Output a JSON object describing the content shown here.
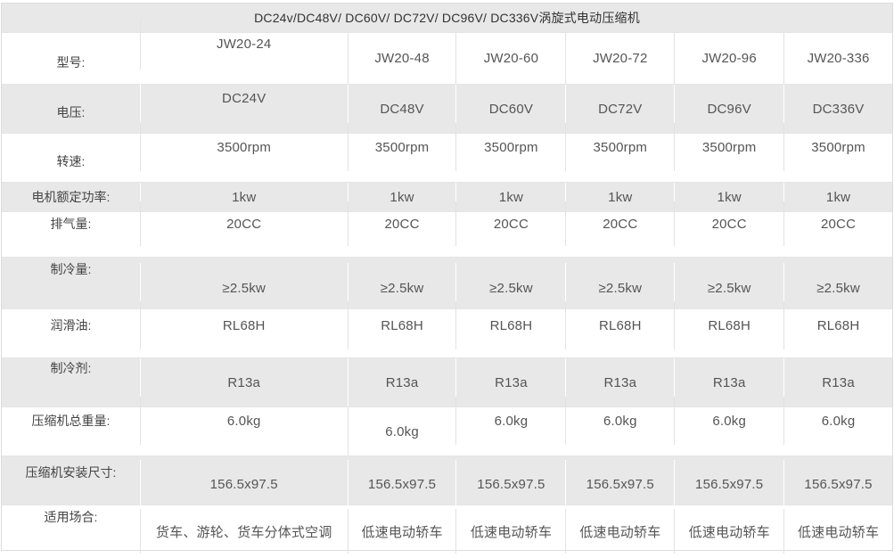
{
  "table": {
    "title": "DC24v/DC48V/ DC60V/ DC72V/ DC96V/ DC336V涡旋式电动压缩机",
    "columns": [
      "JW20-24",
      "JW20-48",
      "JW20-60",
      "JW20-72",
      "JW20-96",
      "JW20-336"
    ],
    "rows": [
      {
        "label": "型号:",
        "values": [
          "JW20-24",
          "JW20-48",
          "JW20-60",
          "JW20-72",
          "JW20-96",
          "JW20-336"
        ]
      },
      {
        "label": "电压:",
        "values": [
          "DC24V",
          "DC48V",
          "DC60V",
          "DC72V",
          "DC96V",
          "DC336V"
        ]
      },
      {
        "label": "转速:",
        "values": [
          "3500rpm",
          "3500rpm",
          "3500rpm",
          "3500rpm",
          "3500rpm",
          "3500rpm"
        ]
      },
      {
        "label": "电机额定功率:",
        "values": [
          "1kw",
          "1kw",
          "1kw",
          "1kw",
          "1kw",
          "1kw"
        ]
      },
      {
        "label": "排气量:",
        "values": [
          "20CC",
          "20CC",
          "20CC",
          "20CC",
          "20CC",
          "20CC"
        ]
      },
      {
        "label": "制冷量:",
        "values": [
          "≥2.5kw",
          "≥2.5kw",
          "≥2.5kw",
          "≥2.5kw",
          "≥2.5kw",
          "≥2.5kw"
        ]
      },
      {
        "label": "润滑油:",
        "values": [
          "RL68H",
          "RL68H",
          "RL68H",
          "RL68H",
          "RL68H",
          "RL68H"
        ]
      },
      {
        "label": "制冷剂:",
        "values": [
          "R13a",
          "R13a",
          "R13a",
          "R13a",
          "R13a",
          "R13a"
        ]
      },
      {
        "label": "压缩机总重量:",
        "values": [
          "6.0kg",
          "6.0kg",
          "6.0kg",
          "6.0kg",
          "6.0kg",
          "6.0kg"
        ]
      },
      {
        "label": "压缩机安装尺寸:",
        "values": [
          "156.5x97.5",
          "156.5x97.5",
          "156.5x97.5",
          "156.5x97.5",
          "156.5x97.5",
          "156.5x97.5"
        ]
      },
      {
        "label": "适用场合:",
        "values": [
          "货车、游轮、货车分体式空调",
          "低速电动轿车",
          "低速电动轿车",
          "低速电动轿车",
          "低速电动轿车",
          "低速电动轿车"
        ]
      }
    ],
    "colors": {
      "stripe_bg": "#e8e8e8",
      "border": "#e2e2e2",
      "label_text": "#444444",
      "value_text": "#555555",
      "title_text": "#333333"
    }
  }
}
